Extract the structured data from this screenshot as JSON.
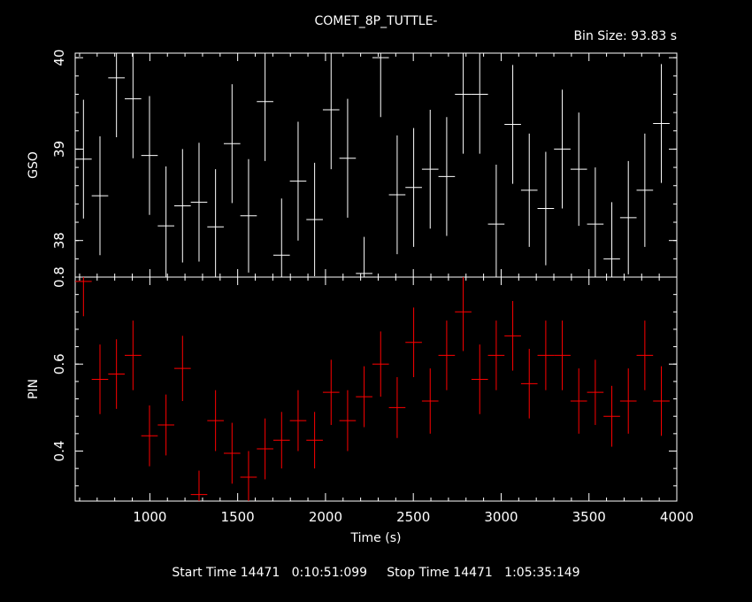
{
  "chart_data": {
    "type": "scatter",
    "title": "COMET_8P_TUTTLE-",
    "bin_size_label": "Bin Size:  93.83  s",
    "xlabel": "Time (s)",
    "xlim": [
      575,
      4000
    ],
    "x_ticks": [
      1000,
      1500,
      2000,
      2500,
      3000,
      3500,
      4000
    ],
    "footer": "Start Time 14471   0:10:51:099     Stop Time 14471   1:05:35:149",
    "grid": false,
    "panels": [
      {
        "name": "GSO",
        "ylabel": "GSO",
        "ylim": [
          37.6,
          40.05
        ],
        "y_ticks": [
          38,
          39,
          40
        ],
        "y_tick_labels": [
          "38",
          "39",
          "40"
        ],
        "color": "#ffffff",
        "x_halfwidth": 47,
        "x": [
          622,
          716,
          810,
          904,
          998,
          1092,
          1186,
          1280,
          1374,
          1468,
          1562,
          1656,
          1750,
          1844,
          1938,
          2032,
          2126,
          2220,
          2314,
          2408,
          2502,
          2596,
          2690,
          2784,
          2878,
          2972,
          3066,
          3160,
          3254,
          3348,
          3442,
          3536,
          3630,
          3724,
          3818,
          3912
        ],
        "y": [
          38.89,
          38.49,
          39.78,
          39.55,
          38.93,
          38.16,
          38.38,
          38.42,
          38.15,
          39.06,
          38.27,
          39.52,
          37.84,
          38.65,
          38.23,
          39.43,
          38.9,
          37.64,
          40.0,
          38.5,
          38.58,
          38.78,
          38.7,
          39.6,
          39.6,
          38.18,
          39.27,
          38.55,
          38.35,
          39.0,
          38.78,
          38.18,
          37.8,
          38.25,
          38.55,
          39.28
        ],
        "err": [
          0.65,
          0.65,
          0.65,
          0.65,
          0.65,
          0.65,
          0.62,
          0.65,
          0.63,
          0.65,
          0.62,
          0.65,
          0.62,
          0.65,
          0.62,
          0.65,
          0.65,
          0.4,
          0.65,
          0.65,
          0.65,
          0.65,
          0.65,
          0.65,
          0.65,
          0.65,
          0.65,
          0.62,
          0.62,
          0.65,
          0.62,
          0.62,
          0.62,
          0.62,
          0.62,
          0.65
        ]
      },
      {
        "name": "PIN",
        "ylabel": "PIN",
        "ylim": [
          0.285,
          0.8
        ],
        "y_ticks": [
          0.4,
          0.6,
          0.8
        ],
        "y_tick_labels": [
          "0.4",
          "0.6",
          "0.8"
        ],
        "color": "#ff0000",
        "x_halfwidth": 47,
        "x": [
          622,
          716,
          810,
          904,
          998,
          1092,
          1186,
          1280,
          1374,
          1468,
          1562,
          1656,
          1750,
          1844,
          1938,
          2032,
          2126,
          2220,
          2314,
          2408,
          2502,
          2596,
          2690,
          2784,
          2878,
          2972,
          3066,
          3160,
          3254,
          3348,
          3442,
          3536,
          3630,
          3724,
          3818,
          3912
        ],
        "y": [
          0.79,
          0.565,
          0.577,
          0.62,
          0.435,
          0.46,
          0.59,
          0.3,
          0.47,
          0.395,
          0.34,
          0.405,
          0.425,
          0.47,
          0.425,
          0.535,
          0.47,
          0.525,
          0.6,
          0.5,
          0.65,
          0.515,
          0.62,
          0.72,
          0.565,
          0.62,
          0.665,
          0.555,
          0.62,
          0.62,
          0.515,
          0.535,
          0.48,
          0.515,
          0.62,
          0.515
        ],
        "err": [
          0.08,
          0.08,
          0.08,
          0.08,
          0.07,
          0.07,
          0.075,
          0.055,
          0.07,
          0.07,
          0.06,
          0.07,
          0.065,
          0.07,
          0.065,
          0.075,
          0.07,
          0.07,
          0.075,
          0.07,
          0.08,
          0.075,
          0.08,
          0.09,
          0.08,
          0.08,
          0.08,
          0.08,
          0.08,
          0.08,
          0.075,
          0.075,
          0.07,
          0.075,
          0.08,
          0.08
        ]
      }
    ]
  }
}
